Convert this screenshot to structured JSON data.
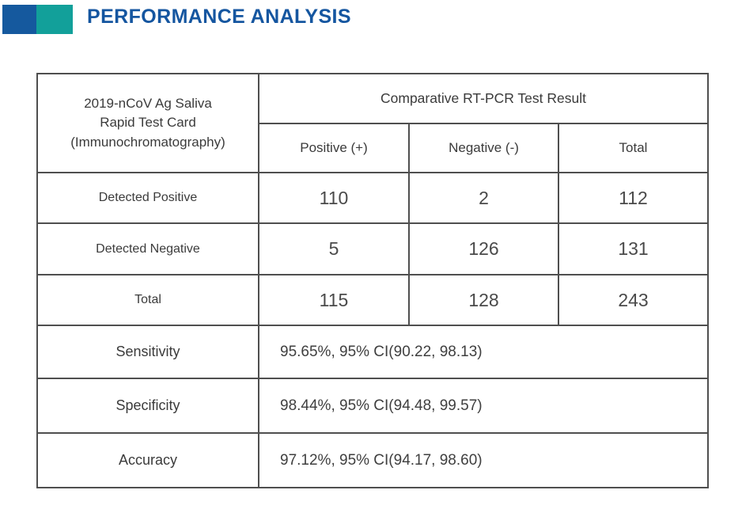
{
  "header": {
    "title": "PERFORMANCE ANALYSIS",
    "accent_blue": "#15599E",
    "accent_teal": "#12A09A",
    "title_color": "#1556A0"
  },
  "table": {
    "row_header": "2019-nCoV Ag Saliva\nRapid Test Card\n(Immunochromatography)",
    "col_group_header": "Comparative RT-PCR Test Result",
    "columns": [
      "Positive (+)",
      "Negative (-)",
      "Total"
    ],
    "rows": [
      {
        "label": "Detected Positive",
        "values": [
          "110",
          "2",
          "112"
        ]
      },
      {
        "label": "Detected Negative",
        "values": [
          "5",
          "126",
          "131"
        ]
      },
      {
        "label": "Total",
        "values": [
          "115",
          "128",
          "243"
        ]
      }
    ],
    "metrics": [
      {
        "label": "Sensitivity",
        "value": "95.65%, 95% CI(90.22, 98.13)"
      },
      {
        "label": "Specificity",
        "value": "98.44%, 95% CI(94.48, 99.57)"
      },
      {
        "label": "Accuracy",
        "value": "97.12%, 95% CI(94.17, 98.60)"
      }
    ]
  }
}
